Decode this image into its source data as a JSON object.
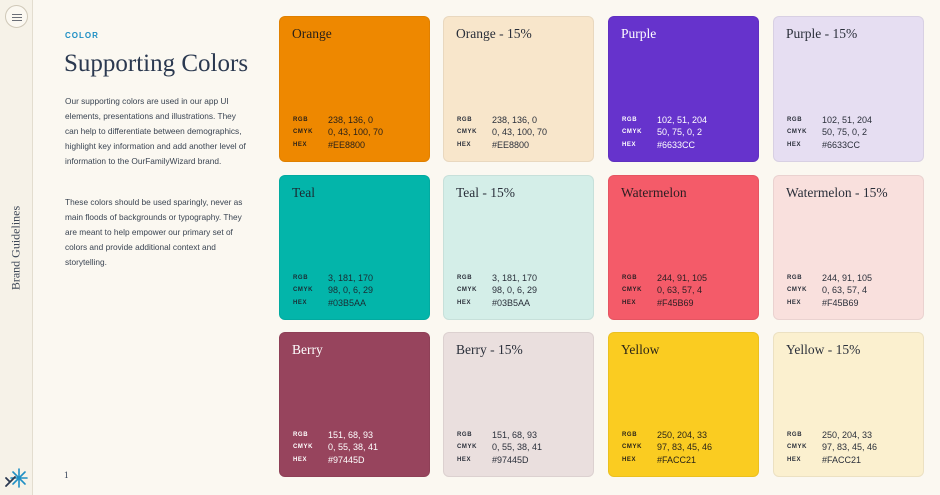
{
  "sidebar": {
    "vertical_label": "Brand Guidelines",
    "menu_icon": "hamburger-icon",
    "logo_icon": "starburst-logo-icon"
  },
  "header": {
    "eyebrow": "COLOR",
    "title": "Supporting Colors"
  },
  "body": {
    "paragraph_1": "Our supporting colors are used in our app UI elements, presentations and illustrations. They can help to differentiate between demographics, highlight key information and add another level of information to the OurFamilyWizard brand.",
    "paragraph_2": "These colors should be used sparingly, never as main floods of backgrounds or typography. They are meant to help empower our primary set of colors and provide additional context and storytelling."
  },
  "page_number": "1",
  "spec_labels": {
    "rgb": "RGB",
    "cmyk": "CMYK",
    "hex": "HEX"
  },
  "swatches": [
    {
      "name": "Orange",
      "rgb": "238, 136, 0",
      "cmyk": "0, 43, 100, 70",
      "hex": "#EE8800",
      "bg": "#ee8800",
      "fg": "#2a2118"
    },
    {
      "name": "Orange - 15%",
      "rgb": "238, 136, 0",
      "cmyk": "0, 43, 100, 70",
      "hex": "#EE8800",
      "bg": "#f8e6cb",
      "fg": "#2a2f3a"
    },
    {
      "name": "Purple",
      "rgb": "102, 51, 204",
      "cmyk": "50, 75, 0, 2",
      "hex": "#6633CC",
      "bg": "#6633cc",
      "fg": "#ffffff"
    },
    {
      "name": "Purple - 15%",
      "rgb": "102, 51, 204",
      "cmyk": "50, 75, 0, 2",
      "hex": "#6633CC",
      "bg": "#e6def2",
      "fg": "#2a2f3a"
    },
    {
      "name": "Teal",
      "rgb": "3, 181, 170",
      "cmyk": "98, 0, 6, 29",
      "hex": "#03B5AA",
      "bg": "#03b5aa",
      "fg": "#1b2b33"
    },
    {
      "name": "Teal - 15%",
      "rgb": "3, 181, 170",
      "cmyk": "98, 0, 6, 29",
      "hex": "#03B5AA",
      "bg": "#d4eee8",
      "fg": "#2a2f3a"
    },
    {
      "name": "Watermelon",
      "rgb": "244, 91, 105",
      "cmyk": "0, 63, 57, 4",
      "hex": "#F45B69",
      "bg": "#f45b69",
      "fg": "#2a1e22"
    },
    {
      "name": "Watermelon - 15%",
      "rgb": "244, 91, 105",
      "cmyk": "0, 63, 57, 4",
      "hex": "#F45B69",
      "bg": "#f9e0dd",
      "fg": "#2a2f3a"
    },
    {
      "name": "Berry",
      "rgb": "151, 68, 93",
      "cmyk": "0, 55, 38, 41",
      "hex": "#97445D",
      "bg": "#97445d",
      "fg": "#ffffff"
    },
    {
      "name": "Berry - 15%",
      "rgb": "151, 68, 93",
      "cmyk": "0, 55, 38, 41",
      "hex": "#97445D",
      "bg": "#eadfde",
      "fg": "#2a2f3a"
    },
    {
      "name": "Yellow",
      "rgb": "250, 204, 33",
      "cmyk": "97, 83, 45, 46",
      "hex": "#FACC21",
      "bg": "#facc21",
      "fg": "#2a2418"
    },
    {
      "name": "Yellow - 15%",
      "rgb": "250, 204, 33",
      "cmyk": "97, 83, 45, 46",
      "hex": "#FACC21",
      "bg": "#fbf0cf",
      "fg": "#2a2f3a"
    }
  ]
}
